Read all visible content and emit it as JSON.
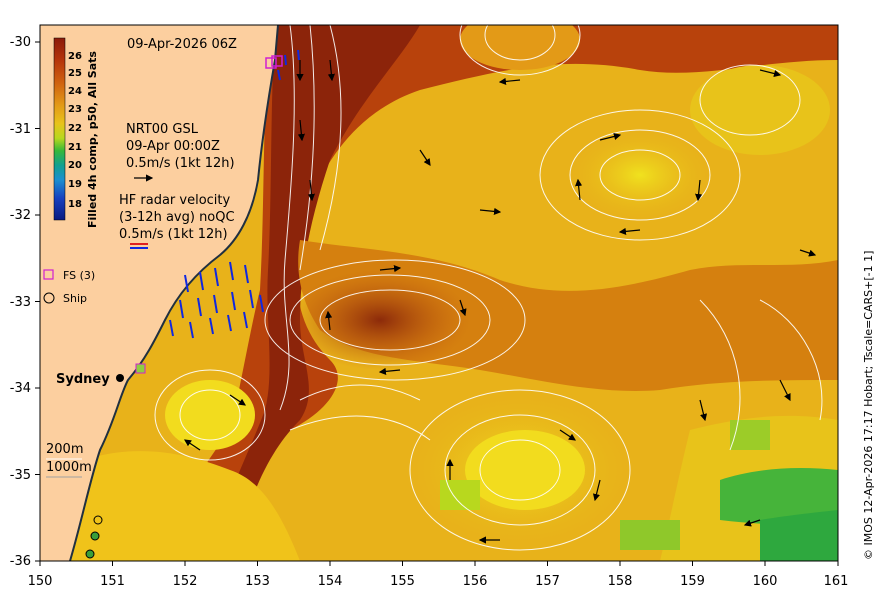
{
  "map": {
    "date_title": "09-Apr-2026 06Z",
    "x_axis": {
      "range": [
        150,
        161
      ],
      "ticks": [
        "150",
        "151",
        "152",
        "153",
        "154",
        "155",
        "156",
        "157",
        "158",
        "159",
        "160",
        "161"
      ]
    },
    "y_axis": {
      "range": [
        -36,
        -30
      ],
      "ticks": [
        "-30",
        "-31",
        "-32",
        "-33",
        "-34",
        "-35",
        "-36"
      ]
    },
    "colorbar": {
      "title": "Filled 4h comp, p50, All Sats",
      "ticks": [
        "26",
        "25",
        "24",
        "23",
        "22",
        "21",
        "20",
        "19",
        "18"
      ],
      "colors": [
        "#8b1a0a",
        "#b5340a",
        "#d0630f",
        "#e39a17",
        "#e8c31a",
        "#b8d81e",
        "#35b83a",
        "#10a090",
        "#1b8fd0",
        "#1740c0",
        "#0a1a80"
      ]
    },
    "gsl": {
      "lines": [
        "NRT00 GSL",
        "09-Apr 00:00Z",
        "0.5m/s (1kt 12h)"
      ]
    },
    "hf_radar": {
      "lines": [
        "HF radar velocity",
        "(3-12h avg) noQC",
        "0.5m/s (1kt 12h)"
      ]
    },
    "legend": {
      "fs_label": "FS (3)",
      "ship_label": "Ship"
    },
    "city_label": "Sydney",
    "depth_labels": [
      "200m",
      "1000m"
    ],
    "credit": "© IMOS 12-Apr-2026 17:17 Hobart; Tscale=CARS+[-1 1]",
    "colors": {
      "land": "#fccf9f",
      "warm": "#a8340a",
      "mid": "#e0a018",
      "cool": "#f2d21c",
      "green": "#3fb03a",
      "arrow": "#000000",
      "contour": "#ffffff",
      "radar": "#1028e0"
    }
  }
}
